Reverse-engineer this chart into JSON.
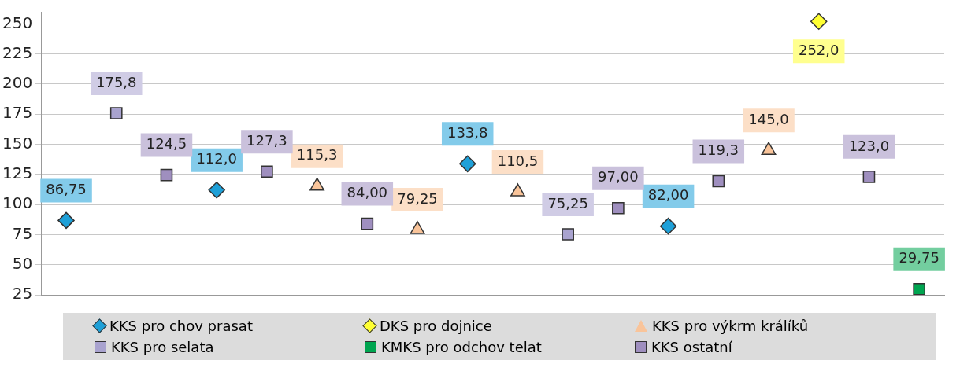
{
  "chart_data": {
    "type": "scatter",
    "categories": [
      null,
      null,
      null,
      null,
      null,
      null,
      null,
      null,
      null,
      null,
      null,
      null,
      null,
      null,
      null,
      null,
      null,
      null
    ],
    "ylim": [
      25,
      260
    ],
    "yticks": [
      25,
      50,
      75,
      100,
      125,
      150,
      175,
      200,
      225,
      250
    ],
    "tick_labels": "y",
    "grid": "y",
    "legend": "bottom",
    "series": [
      {
        "name": "KKS pro chov prasat",
        "color": "#1ea0d8",
        "marker": "diamond",
        "values": [
          86.75,
          null,
          null,
          112.0,
          null,
          null,
          null,
          null,
          133.8,
          null,
          null,
          null,
          82.0,
          null,
          null,
          null,
          null,
          null
        ],
        "value_labels": [
          "86,75",
          null,
          null,
          "112,0",
          null,
          null,
          null,
          null,
          "133,8",
          null,
          null,
          null,
          "82,00",
          null,
          null,
          null,
          null,
          null
        ]
      },
      {
        "name": "DKS pro dojnice",
        "color": "#ffff33",
        "marker": "diamond",
        "values": [
          null,
          null,
          null,
          null,
          null,
          null,
          null,
          null,
          null,
          null,
          null,
          null,
          null,
          null,
          null,
          252.0,
          null,
          null
        ],
        "value_labels": [
          null,
          null,
          null,
          null,
          null,
          null,
          null,
          null,
          null,
          null,
          null,
          null,
          null,
          null,
          null,
          "252,0",
          null,
          null
        ]
      },
      {
        "name": "KKS pro výkrm králíků",
        "color": "#f9c49a",
        "marker": "triangle",
        "values": [
          null,
          null,
          null,
          null,
          null,
          115.3,
          null,
          79.25,
          null,
          110.5,
          null,
          null,
          null,
          null,
          145.0,
          null,
          null,
          null
        ],
        "value_labels": [
          null,
          null,
          null,
          null,
          null,
          "115,3",
          null,
          "79,25",
          null,
          "110,5",
          null,
          null,
          null,
          null,
          "145,0",
          null,
          null,
          null
        ]
      },
      {
        "name": "KKS pro selata",
        "color": "#a9a3cf",
        "marker": "square",
        "values": [
          null,
          175.8,
          null,
          null,
          null,
          null,
          null,
          null,
          null,
          null,
          75.25,
          null,
          null,
          null,
          null,
          null,
          null,
          null
        ],
        "value_labels": [
          null,
          "175,8",
          null,
          null,
          null,
          null,
          null,
          null,
          null,
          null,
          "75,25",
          null,
          null,
          null,
          null,
          null,
          null,
          null
        ]
      },
      {
        "name": "KMKS pro odchov telat",
        "color": "#00a550",
        "marker": "square",
        "values": [
          null,
          null,
          null,
          null,
          null,
          null,
          null,
          null,
          null,
          null,
          null,
          null,
          null,
          null,
          null,
          null,
          null,
          29.75
        ],
        "value_labels": [
          null,
          null,
          null,
          null,
          null,
          null,
          null,
          null,
          null,
          null,
          null,
          null,
          null,
          null,
          null,
          null,
          null,
          "29,75"
        ]
      },
      {
        "name": "KKS ostatní",
        "color": "#9f8fbf",
        "marker": "square",
        "values": [
          null,
          null,
          124.5,
          null,
          127.3,
          null,
          84.0,
          null,
          null,
          null,
          null,
          97.0,
          null,
          119.3,
          null,
          null,
          123.0,
          null
        ],
        "value_labels": [
          null,
          null,
          "124,5",
          null,
          "127,3",
          null,
          "84,00",
          null,
          null,
          null,
          null,
          "97,00",
          null,
          "119,3",
          null,
          null,
          "123,0",
          null
        ]
      }
    ]
  }
}
